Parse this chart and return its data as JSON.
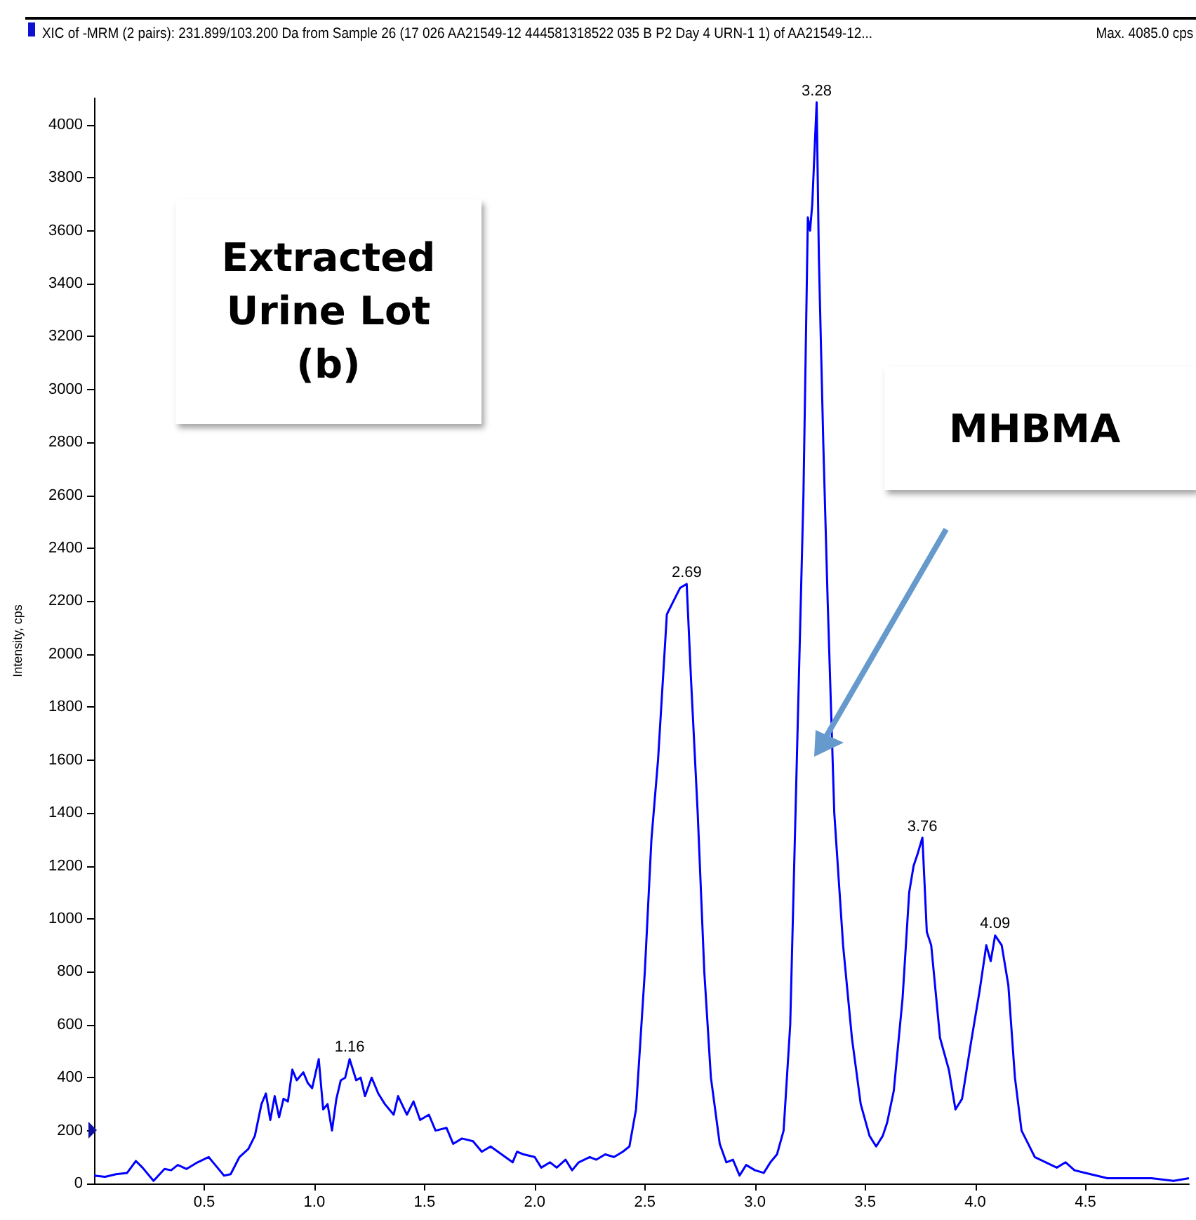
{
  "chart_data": {
    "type": "line",
    "title": "XIC of -MRM (2 pairs): 231.899/103.200 Da  from Sample 26 (17 026 AA21549-12 444581318522 035 B P2 Day 4 URN-1 1) of AA21549-12...",
    "subtitle": "Max. 4085.0 cps",
    "ylabel": "Intensity, cps",
    "annotations": [
      "Extracted Urine Lot (b)",
      "MHBMA",
      {
        "text": "1.16",
        "x": 1.16,
        "y": 470
      },
      {
        "text": "2.69",
        "x": 2.69,
        "y": 2265
      },
      {
        "text": "3.28",
        "x": 3.28,
        "y": 4085
      },
      {
        "text": "3.76",
        "x": 3.76,
        "y": 1307
      },
      {
        "text": "4.09",
        "x": 4.09,
        "y": 937
      }
    ],
    "x": [
      0.0,
      0.05,
      0.1,
      0.15,
      0.19,
      0.22,
      0.27,
      0.32,
      0.35,
      0.38,
      0.42,
      0.47,
      0.52,
      0.56,
      0.59,
      0.62,
      0.66,
      0.7,
      0.73,
      0.76,
      0.78,
      0.8,
      0.82,
      0.84,
      0.86,
      0.88,
      0.9,
      0.92,
      0.95,
      0.97,
      0.99,
      1.02,
      1.04,
      1.06,
      1.08,
      1.1,
      1.12,
      1.14,
      1.16,
      1.19,
      1.21,
      1.23,
      1.26,
      1.29,
      1.32,
      1.36,
      1.38,
      1.42,
      1.45,
      1.48,
      1.52,
      1.55,
      1.6,
      1.63,
      1.67,
      1.72,
      1.76,
      1.8,
      1.85,
      1.9,
      1.92,
      1.95,
      2.0,
      2.03,
      2.07,
      2.1,
      2.14,
      2.17,
      2.2,
      2.25,
      2.28,
      2.32,
      2.36,
      2.4,
      2.43,
      2.46,
      2.5,
      2.53,
      2.56,
      2.6,
      2.63,
      2.66,
      2.69,
      2.71,
      2.74,
      2.77,
      2.8,
      2.84,
      2.87,
      2.9,
      2.93,
      2.96,
      3.0,
      3.04,
      3.07,
      3.1,
      3.13,
      3.16,
      3.19,
      3.22,
      3.24,
      3.25,
      3.26,
      3.28,
      3.29,
      3.31,
      3.33,
      3.36,
      3.4,
      3.44,
      3.48,
      3.52,
      3.55,
      3.58,
      3.6,
      3.63,
      3.67,
      3.7,
      3.72,
      3.74,
      3.76,
      3.78,
      3.8,
      3.84,
      3.88,
      3.91,
      3.94,
      3.98,
      4.02,
      4.05,
      4.07,
      4.09,
      4.12,
      4.15,
      4.18,
      4.21,
      4.24,
      4.27,
      4.32,
      4.37,
      4.41,
      4.45,
      4.5,
      4.6,
      4.7,
      4.8,
      4.9,
      4.97
    ],
    "series": [
      {
        "color": "#0000ff",
        "values": [
          30,
          25,
          35,
          40,
          85,
          60,
          10,
          55,
          50,
          70,
          55,
          80,
          100,
          60,
          30,
          35,
          100,
          130,
          180,
          300,
          340,
          240,
          330,
          250,
          320,
          310,
          430,
          390,
          420,
          380,
          360,
          470,
          280,
          300,
          200,
          320,
          390,
          400,
          470,
          390,
          400,
          330,
          400,
          340,
          300,
          260,
          330,
          260,
          310,
          240,
          260,
          200,
          210,
          150,
          170,
          160,
          120,
          140,
          110,
          80,
          120,
          110,
          100,
          60,
          80,
          60,
          90,
          50,
          80,
          100,
          90,
          110,
          100,
          120,
          140,
          280,
          800,
          1300,
          1600,
          2150,
          2200,
          2250,
          2265,
          1900,
          1400,
          800,
          400,
          150,
          80,
          90,
          30,
          70,
          50,
          40,
          80,
          110,
          200,
          600,
          1600,
          2600,
          3650,
          3600,
          3700,
          4085,
          3500,
          2800,
          2200,
          1400,
          900,
          550,
          300,
          180,
          140,
          180,
          230,
          350,
          700,
          1100,
          1200,
          1250,
          1307,
          950,
          900,
          550,
          430,
          280,
          320,
          530,
          730,
          900,
          840,
          937,
          900,
          750,
          400,
          200,
          150,
          100,
          80,
          60,
          80,
          50,
          40,
          20,
          20,
          20,
          10,
          20
        ]
      }
    ],
    "xlim": [
      0,
      4.97
    ],
    "xticks": [
      {
        "value": 0.5,
        "label": "0.5"
      },
      {
        "value": 1,
        "label": "1.0"
      },
      {
        "value": 1.5,
        "label": "1.5"
      },
      {
        "value": 2,
        "label": "2.0"
      },
      {
        "value": 2.5,
        "label": "2.5"
      },
      {
        "value": 3,
        "label": "3.0"
      },
      {
        "value": 3.5,
        "label": "3.5"
      },
      {
        "value": 4,
        "label": "4.0"
      },
      {
        "value": 4.5,
        "label": "4.5"
      }
    ],
    "ylim": [
      0,
      4100
    ],
    "yticks": [
      0,
      200,
      400,
      600,
      800,
      1000,
      1200,
      1400,
      1600,
      1800,
      2000,
      2200,
      2400,
      2600,
      2800,
      3000,
      3200,
      3400,
      3600,
      3800,
      4000
    ],
    "marker": "none",
    "line_style": "solid"
  }
}
